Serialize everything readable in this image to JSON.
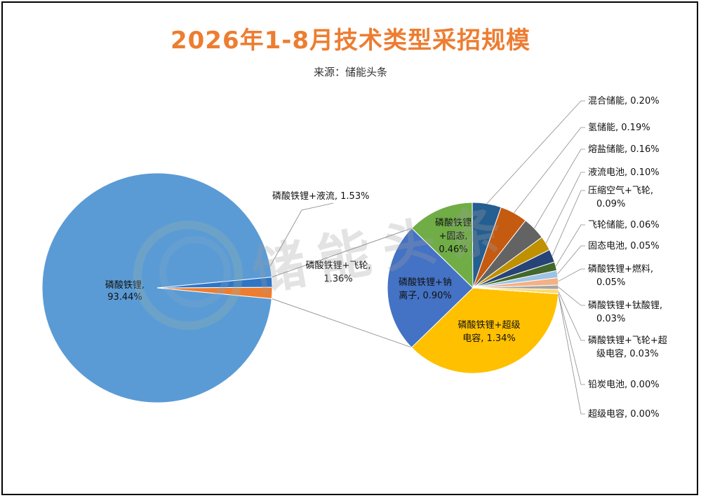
{
  "chart_data": {
    "type": "pie",
    "title": "2026年1-8月技术类型采招规模",
    "subtitle": "来源：储能头条",
    "watermark": "储能头条",
    "main_pie": [
      {
        "label": "磷酸铁锂",
        "value": 93.44,
        "label_text": "磷酸铁锂,",
        "value_text": "93.44%",
        "color": "#5B9BD5"
      },
      {
        "label": "磷酸铁锂+液流",
        "value": 1.53,
        "label_text": "磷酸铁锂+液流, 1.53%",
        "color": "#ED7D31"
      },
      {
        "label": "磷酸铁锂+飞轮",
        "value": 1.36,
        "label_text": "磷酸铁锂+飞轮,",
        "value_text": "1.36%",
        "color": "#2E75C6"
      }
    ],
    "secondary_pie": [
      {
        "label": "磷酸铁锂+超级电容",
        "value": 1.34,
        "line1": "磷酸铁锂+超级",
        "line2": "电容, 1.34%",
        "color": "#FFC000"
      },
      {
        "label": "磷酸铁锂+钠离子",
        "value": 0.9,
        "line1": "磷酸铁锂+钠",
        "line2": "离子, 0.90%",
        "color": "#4472C4"
      },
      {
        "label": "磷酸铁锂+固态",
        "value": 0.46,
        "line1": "磷酸铁锂",
        "line2": "+固态,",
        "line3": "0.46%",
        "color": "#70AD47"
      },
      {
        "label": "混合储能",
        "value": 0.2,
        "text": "混合储能, 0.20%",
        "color": "#255E91"
      },
      {
        "label": "氢储能",
        "value": 0.19,
        "text": "氢储能, 0.19%",
        "color": "#C55A11"
      },
      {
        "label": "熔盐储能",
        "value": 0.16,
        "text": "熔盐储能, 0.16%",
        "color": "#636363"
      },
      {
        "label": "液流电池",
        "value": 0.1,
        "text": "液流电池, 0.10%",
        "color": "#BF9000"
      },
      {
        "label": "压缩空气+飞轮",
        "value": 0.09,
        "text": "压缩空气+飞轮,",
        "text2": "0.09%",
        "color": "#264478"
      },
      {
        "label": "飞轮储能",
        "value": 0.06,
        "text": "飞轮储能, 0.06%",
        "color": "#43682B"
      },
      {
        "label": "固态电池",
        "value": 0.05,
        "text": "固态电池, 0.05%",
        "color": "#9DC3E6"
      },
      {
        "label": "磷酸铁锂+燃料",
        "value": 0.05,
        "text": "磷酸铁锂+燃料,",
        "text2": "0.05%",
        "color": "#F4B183"
      },
      {
        "label": "磷酸铁锂+钛酸锂",
        "value": 0.03,
        "text": "磷酸铁锂+钛酸锂,",
        "text2": "0.03%",
        "color": "#A5A5A5"
      },
      {
        "label": "磷酸铁锂+飞轮+超级电容",
        "value": 0.03,
        "text": "磷酸铁锂+飞轮+超",
        "text2": "级电容, 0.03%",
        "color": "#FFD966"
      },
      {
        "label": "铅炭电池",
        "value": 0.0,
        "text": "铅炭电池, 0.00%",
        "color": "#8FAADC"
      },
      {
        "label": "超级电容",
        "value": 0.0,
        "text": "超级电容, 0.00%",
        "color": "#A9D18E"
      }
    ]
  }
}
